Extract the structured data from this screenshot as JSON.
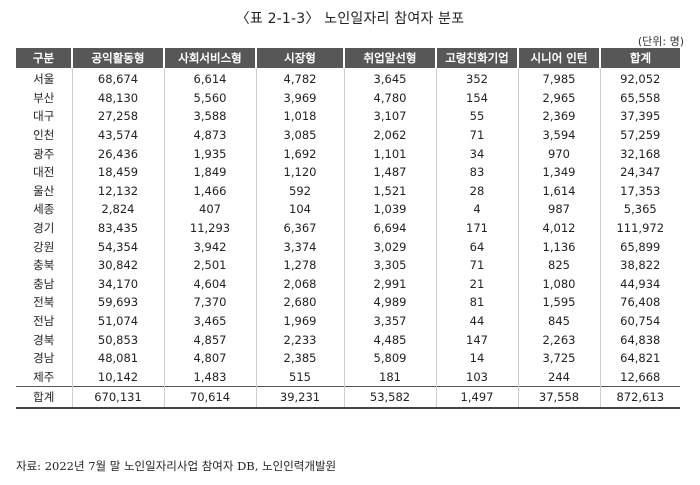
{
  "title": "〈표 2-1-3〉 노인일자리 참여자 분포",
  "unit": "(단위: 명)",
  "headers": [
    "구분",
    "공익활동형",
    "사회서비스형",
    "시장형",
    "취업알선형",
    "고령친화기업",
    "시니어 인턴",
    "합계"
  ],
  "rows": [
    [
      "서울",
      "68,674",
      "6,614",
      "4,782",
      "3,645",
      "352",
      "7,985",
      "92,052"
    ],
    [
      "부산",
      "48,130",
      "5,560",
      "3,969",
      "4,780",
      "154",
      "2,965",
      "65,558"
    ],
    [
      "대구",
      "27,258",
      "3,588",
      "1,018",
      "3,107",
      "55",
      "2,369",
      "37,395"
    ],
    [
      "인천",
      "43,574",
      "4,873",
      "3,085",
      "2,062",
      "71",
      "3,594",
      "57,259"
    ],
    [
      "광주",
      "26,436",
      "1,935",
      "1,692",
      "1,101",
      "34",
      "970",
      "32,168"
    ],
    [
      "대전",
      "18,459",
      "1,849",
      "1,120",
      "1,487",
      "83",
      "1,349",
      "24,347"
    ],
    [
      "울산",
      "12,132",
      "1,466",
      "592",
      "1,521",
      "28",
      "1,614",
      "17,353"
    ],
    [
      "세종",
      "2,824",
      "407",
      "104",
      "1,039",
      "4",
      "987",
      "5,365"
    ],
    [
      "경기",
      "83,435",
      "11,293",
      "6,367",
      "6,694",
      "171",
      "4,012",
      "111,972"
    ],
    [
      "강원",
      "54,354",
      "3,942",
      "3,374",
      "3,029",
      "64",
      "1,136",
      "65,899"
    ],
    [
      "충북",
      "30,842",
      "2,501",
      "1,278",
      "3,305",
      "71",
      "825",
      "38,822"
    ],
    [
      "충남",
      "34,170",
      "4,604",
      "2,068",
      "2,991",
      "21",
      "1,080",
      "44,934"
    ],
    [
      "전북",
      "59,693",
      "7,370",
      "2,680",
      "4,989",
      "81",
      "1,595",
      "76,408"
    ],
    [
      "전남",
      "51,074",
      "3,465",
      "1,969",
      "3,357",
      "44",
      "845",
      "60,754"
    ],
    [
      "경북",
      "50,853",
      "4,857",
      "2,233",
      "4,485",
      "147",
      "2,263",
      "64,838"
    ],
    [
      "경남",
      "48,081",
      "4,807",
      "2,385",
      "5,809",
      "14",
      "3,725",
      "64,821"
    ],
    [
      "제주",
      "10,142",
      "1,483",
      "515",
      "181",
      "103",
      "244",
      "12,668"
    ]
  ],
  "total": [
    "합계",
    "670,131",
    "70,614",
    "39,231",
    "53,582",
    "1,497",
    "37,558",
    "872,613"
  ],
  "source": "자료: 2022년 7월 말 노인일자리사업 참여자 DB, 노인인력개발원"
}
